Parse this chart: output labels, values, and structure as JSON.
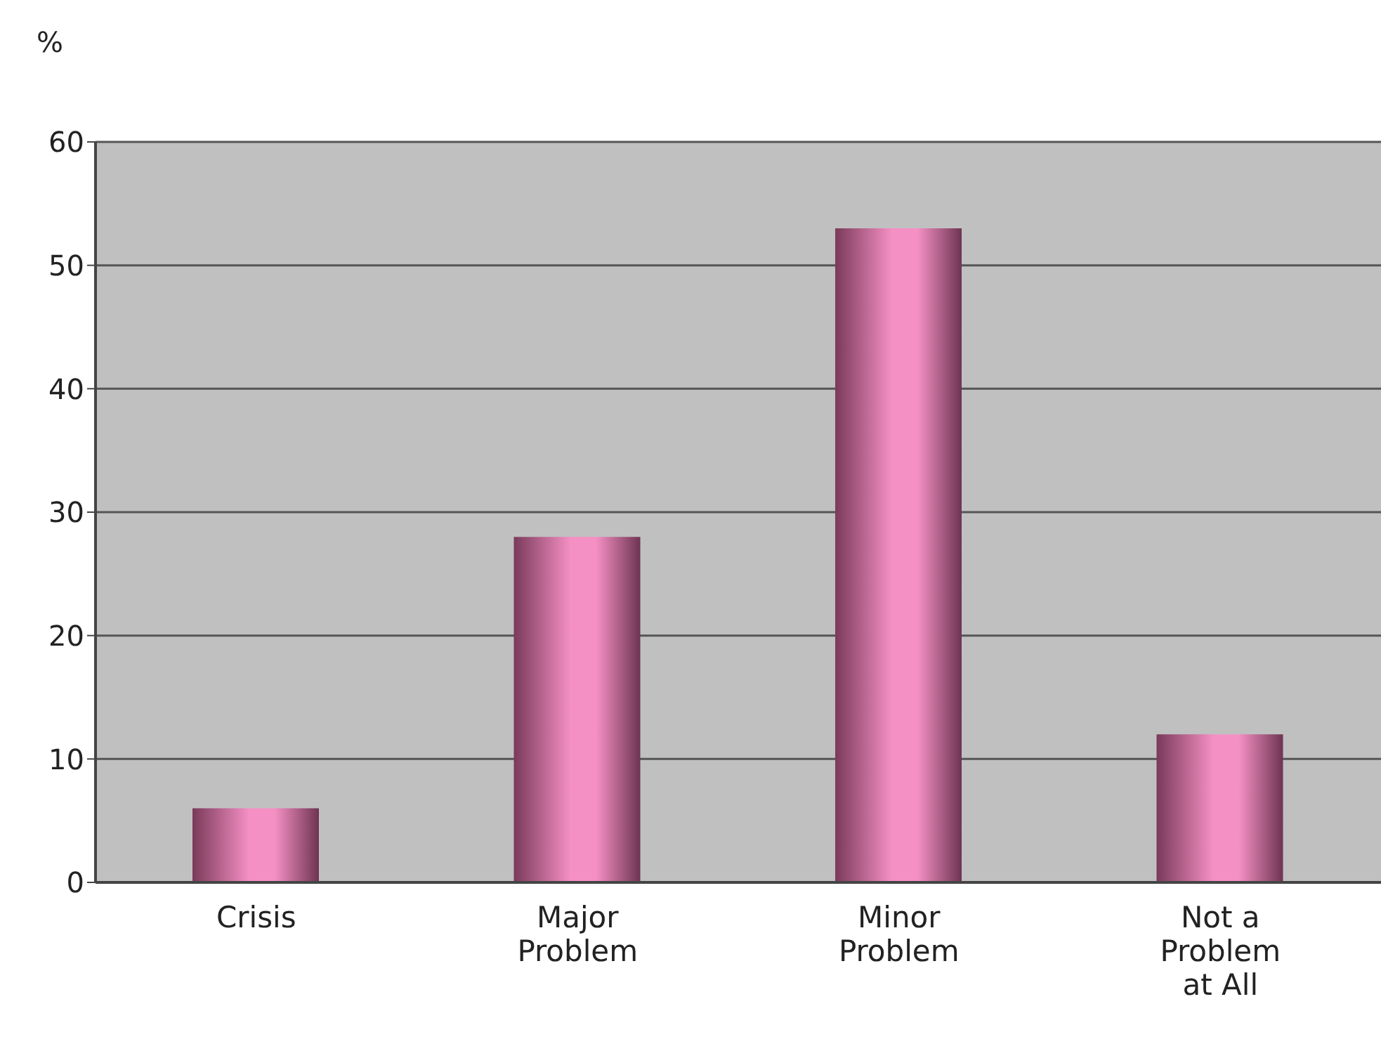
{
  "chart_data": {
    "type": "bar",
    "ylabel": "%",
    "categories": [
      "Crisis",
      "Major\nProblem",
      "Minor\nProblem",
      "Not a\nProblem\nat All"
    ],
    "values": [
      6,
      28,
      53,
      12
    ],
    "color": "#f590c4",
    "ylim": [
      0,
      60
    ],
    "yticks": [
      0,
      10,
      20,
      30,
      40,
      50,
      60
    ],
    "grid": "y"
  }
}
